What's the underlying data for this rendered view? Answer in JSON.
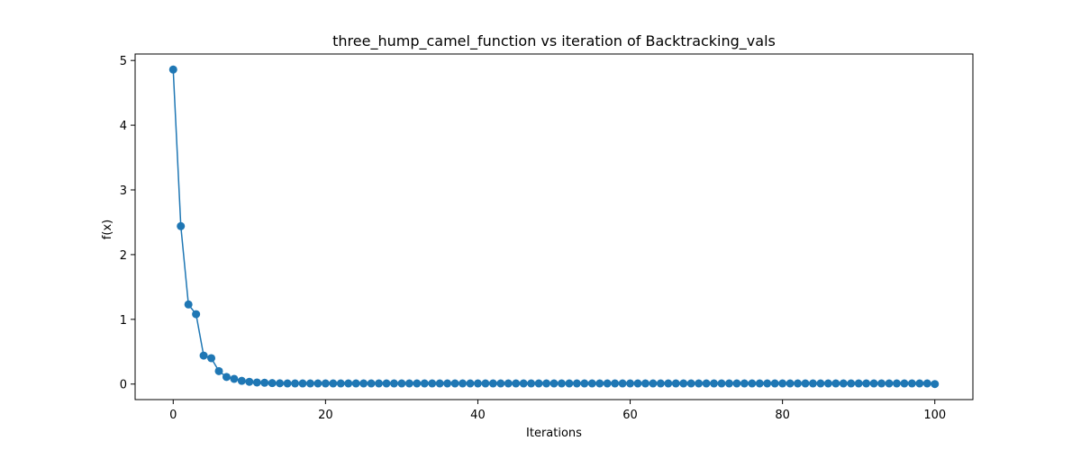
{
  "chart_data": {
    "type": "line",
    "title": "three_hump_camel_function vs iteration of Backtracking_vals",
    "xlabel": "Iterations",
    "ylabel": "f(x)",
    "xlim": [
      -5,
      105
    ],
    "ylim": [
      -0.24,
      5.1
    ],
    "xticks": [
      0,
      20,
      40,
      60,
      80,
      100
    ],
    "yticks": [
      0,
      1,
      2,
      3,
      4,
      5
    ],
    "grid": false,
    "marker": "circle",
    "colors": {
      "series": "#1f77b4",
      "axes": "#000000"
    },
    "series": [
      {
        "x": [
          0,
          1,
          2,
          3,
          4,
          5,
          6,
          7,
          8,
          9,
          10,
          11,
          12,
          13,
          14,
          15,
          16,
          17,
          18,
          19,
          20,
          21,
          22,
          23,
          24,
          25,
          26,
          27,
          28,
          29,
          30,
          31,
          32,
          33,
          34,
          35,
          36,
          37,
          38,
          39,
          40,
          41,
          42,
          43,
          44,
          45,
          46,
          47,
          48,
          49,
          50,
          51,
          52,
          53,
          54,
          55,
          56,
          57,
          58,
          59,
          60,
          61,
          62,
          63,
          64,
          65,
          66,
          67,
          68,
          69,
          70,
          71,
          72,
          73,
          74,
          75,
          76,
          77,
          78,
          79,
          80,
          81,
          82,
          83,
          84,
          85,
          86,
          87,
          88,
          89,
          90,
          91,
          92,
          93,
          94,
          95,
          96,
          97,
          98,
          99,
          100
        ],
        "values": [
          4.86,
          2.44,
          1.23,
          1.08,
          0.44,
          0.4,
          0.2,
          0.11,
          0.08,
          0.05,
          0.035,
          0.025,
          0.02,
          0.015,
          0.012,
          0.01,
          0.01,
          0.01,
          0.01,
          0.01,
          0.01,
          0.01,
          0.01,
          0.01,
          0.01,
          0.01,
          0.01,
          0.01,
          0.01,
          0.01,
          0.01,
          0.01,
          0.01,
          0.01,
          0.01,
          0.01,
          0.01,
          0.01,
          0.01,
          0.01,
          0.01,
          0.01,
          0.01,
          0.01,
          0.01,
          0.01,
          0.01,
          0.01,
          0.01,
          0.01,
          0.01,
          0.01,
          0.01,
          0.01,
          0.01,
          0.01,
          0.01,
          0.01,
          0.01,
          0.01,
          0.01,
          0.01,
          0.01,
          0.01,
          0.01,
          0.01,
          0.01,
          0.01,
          0.01,
          0.01,
          0.01,
          0.01,
          0.01,
          0.01,
          0.01,
          0.01,
          0.01,
          0.01,
          0.01,
          0.01,
          0.01,
          0.01,
          0.01,
          0.01,
          0.01,
          0.01,
          0.01,
          0.01,
          0.01,
          0.01,
          0.01,
          0.01,
          0.01,
          0.01,
          0.01,
          0.01,
          0.01,
          0.01,
          0.01,
          0.01,
          0.0
        ]
      }
    ]
  }
}
